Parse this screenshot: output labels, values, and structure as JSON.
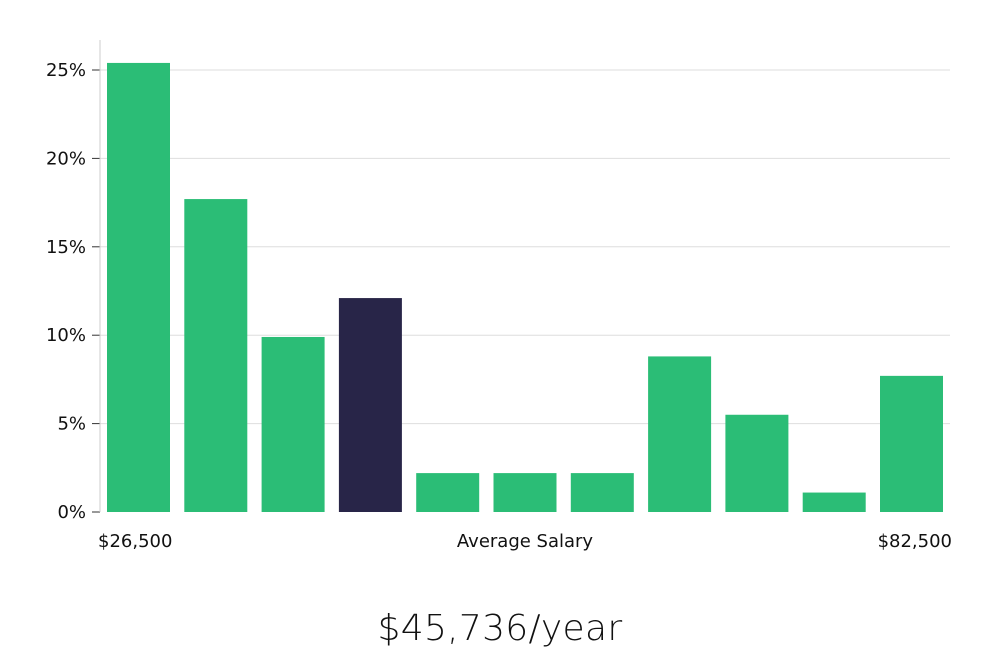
{
  "chart_data": {
    "type": "bar",
    "title": "",
    "xlabel": "Average Salary",
    "ylabel": "",
    "ylim": [
      0,
      26
    ],
    "y_ticks": [
      0,
      5,
      10,
      15,
      20,
      25
    ],
    "y_tick_labels": [
      "0%",
      "5%",
      "10%",
      "15%",
      "20%",
      "25%"
    ],
    "x_min_label": "$26,500",
    "x_max_label": "$82,500",
    "values": [
      25.4,
      17.7,
      9.9,
      12.1,
      2.2,
      2.2,
      2.2,
      8.8,
      5.5,
      1.1,
      7.7
    ],
    "highlight_index": 3,
    "colors": {
      "bar": "#2bbd76",
      "highlight": "#282548",
      "grid": "#dedede",
      "axis": "#cccccc"
    }
  },
  "salary_summary": "$45,736/year"
}
